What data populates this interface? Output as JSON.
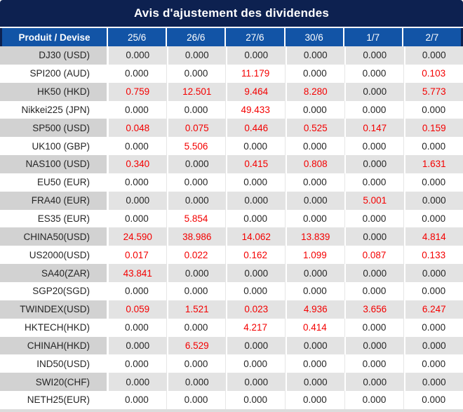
{
  "title": "Avis d'ajustement des dividendes",
  "colors": {
    "title_bg": "#0d2150",
    "header_bg": "#1254a6",
    "row_label_gray": "#d2d2d2",
    "row_cell_gray": "#e3e3e3",
    "negative_red": "#f40000",
    "text_black": "#262626"
  },
  "table": {
    "product_header": "Produit / Devise",
    "date_headers": [
      "25/6",
      "26/6",
      "27/6",
      "30/6",
      "1/7",
      "2/7"
    ],
    "rows": [
      {
        "product": "DJ30 (USD)",
        "values": [
          "0.000",
          "0.000",
          "0.000",
          "0.000",
          "0.000",
          "0.000"
        ],
        "red": [
          0,
          0,
          0,
          0,
          0,
          0
        ]
      },
      {
        "product": "SPI200 (AUD)",
        "values": [
          "0.000",
          "0.000",
          "11.179",
          "0.000",
          "0.000",
          "0.103"
        ],
        "red": [
          0,
          0,
          1,
          0,
          0,
          1
        ]
      },
      {
        "product": "HK50 (HKD)",
        "values": [
          "0.759",
          "12.501",
          "9.464",
          "8.280",
          "0.000",
          "5.773"
        ],
        "red": [
          1,
          1,
          1,
          1,
          0,
          1
        ]
      },
      {
        "product": "Nikkei225 (JPN)",
        "values": [
          "0.000",
          "0.000",
          "49.433",
          "0.000",
          "0.000",
          "0.000"
        ],
        "red": [
          0,
          0,
          1,
          0,
          0,
          0
        ]
      },
      {
        "product": "SP500 (USD)",
        "values": [
          "0.048",
          "0.075",
          "0.446",
          "0.525",
          "0.147",
          "0.159"
        ],
        "red": [
          1,
          1,
          1,
          1,
          1,
          1
        ]
      },
      {
        "product": "UK100 (GBP)",
        "values": [
          "0.000",
          "5.506",
          "0.000",
          "0.000",
          "0.000",
          "0.000"
        ],
        "red": [
          0,
          1,
          0,
          0,
          0,
          0
        ]
      },
      {
        "product": "NAS100 (USD)",
        "values": [
          "0.340",
          "0.000",
          "0.415",
          "0.808",
          "0.000",
          "1.631"
        ],
        "red": [
          1,
          0,
          1,
          1,
          0,
          1
        ]
      },
      {
        "product": "EU50 (EUR)",
        "values": [
          "0.000",
          "0.000",
          "0.000",
          "0.000",
          "0.000",
          "0.000"
        ],
        "red": [
          0,
          0,
          0,
          0,
          0,
          0
        ]
      },
      {
        "product": "FRA40 (EUR)",
        "values": [
          "0.000",
          "0.000",
          "0.000",
          "0.000",
          "5.001",
          "0.000"
        ],
        "red": [
          0,
          0,
          0,
          0,
          1,
          0
        ]
      },
      {
        "product": "ES35 (EUR)",
        "values": [
          "0.000",
          "5.854",
          "0.000",
          "0.000",
          "0.000",
          "0.000"
        ],
        "red": [
          0,
          1,
          0,
          0,
          0,
          0
        ]
      },
      {
        "product": "CHINA50(USD)",
        "values": [
          "24.590",
          "38.986",
          "14.062",
          "13.839",
          "0.000",
          "4.814"
        ],
        "red": [
          1,
          1,
          1,
          1,
          0,
          1
        ]
      },
      {
        "product": "US2000(USD)",
        "values": [
          "0.017",
          "0.022",
          "0.162",
          "1.099",
          "0.087",
          "0.133"
        ],
        "red": [
          1,
          1,
          1,
          1,
          1,
          1
        ]
      },
      {
        "product": "SA40(ZAR)",
        "values": [
          "43.841",
          "0.000",
          "0.000",
          "0.000",
          "0.000",
          "0.000"
        ],
        "red": [
          1,
          0,
          0,
          0,
          0,
          0
        ]
      },
      {
        "product": "SGP20(SGD)",
        "values": [
          "0.000",
          "0.000",
          "0.000",
          "0.000",
          "0.000",
          "0.000"
        ],
        "red": [
          0,
          0,
          0,
          0,
          0,
          0
        ]
      },
      {
        "product": "TWINDEX(USD)",
        "values": [
          "0.059",
          "1.521",
          "0.023",
          "4.936",
          "3.656",
          "6.247"
        ],
        "red": [
          1,
          1,
          1,
          1,
          1,
          1
        ]
      },
      {
        "product": "HKTECH(HKD)",
        "values": [
          "0.000",
          "0.000",
          "4.217",
          "0.414",
          "0.000",
          "0.000"
        ],
        "red": [
          0,
          0,
          1,
          1,
          0,
          0
        ]
      },
      {
        "product": "CHINAH(HKD)",
        "values": [
          "0.000",
          "6.529",
          "0.000",
          "0.000",
          "0.000",
          "0.000"
        ],
        "red": [
          0,
          1,
          0,
          0,
          0,
          0
        ]
      },
      {
        "product": "IND50(USD)",
        "values": [
          "0.000",
          "0.000",
          "0.000",
          "0.000",
          "0.000",
          "0.000"
        ],
        "red": [
          0,
          0,
          0,
          0,
          0,
          0
        ]
      },
      {
        "product": "SWI20(CHF)",
        "values": [
          "0.000",
          "0.000",
          "0.000",
          "0.000",
          "0.000",
          "0.000"
        ],
        "red": [
          0,
          0,
          0,
          0,
          0,
          0
        ]
      },
      {
        "product": "NETH25(EUR)",
        "values": [
          "0.000",
          "0.000",
          "0.000",
          "0.000",
          "0.000",
          "0.000"
        ],
        "red": [
          0,
          0,
          0,
          0,
          0,
          0
        ]
      }
    ]
  }
}
